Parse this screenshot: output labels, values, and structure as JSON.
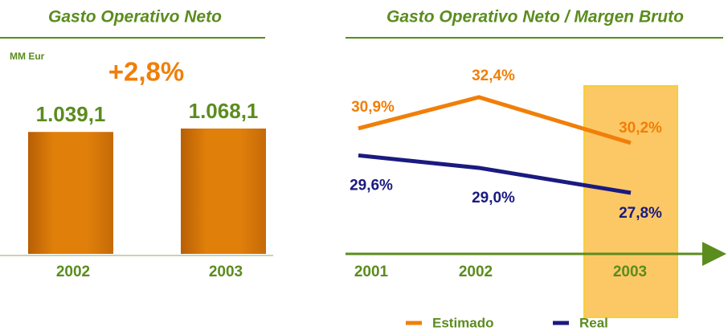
{
  "chart_data": [
    {
      "type": "bar",
      "title": "Gasto Operativo Neto",
      "unit_label": "MM Eur",
      "annotation": "+2,8%",
      "categories": [
        "2002",
        "2003"
      ],
      "values": [
        1039.1,
        1068.1
      ],
      "value_labels": [
        "1.039,1",
        "1.068,1"
      ],
      "color": "#e07f0a"
    },
    {
      "type": "line",
      "title": "Gasto Operativo Neto / Margen Bruto",
      "categories": [
        "2001",
        "2002",
        "2003"
      ],
      "series": [
        {
          "name": "Estimado",
          "color": "#f07f09",
          "values": [
            30.9,
            32.4,
            30.2
          ],
          "value_labels": [
            "30,9%",
            "32,4%",
            "30,2%"
          ]
        },
        {
          "name": "Real",
          "color": "#1a1a80",
          "values": [
            29.6,
            29.0,
            27.8
          ],
          "value_labels": [
            "29,6%",
            "29,0%",
            "27,8%"
          ]
        }
      ],
      "legend": "bottom"
    }
  ]
}
